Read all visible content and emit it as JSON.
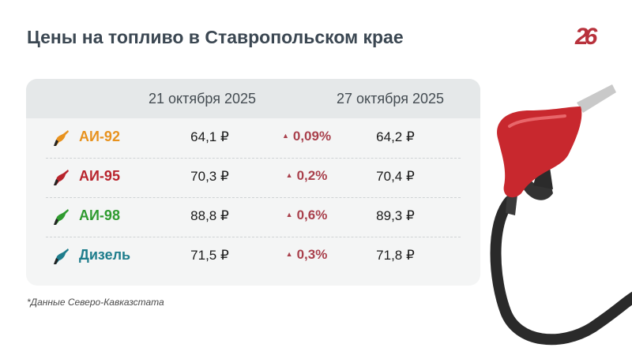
{
  "title": "Цены на топливо в Ставропольском крае",
  "logo": "26",
  "table": {
    "headers": [
      "21 октября 2025",
      "27 октября 2025"
    ],
    "rows": [
      {
        "fuel": "АИ-92",
        "color": "#e8921e",
        "price_old": "64,1 ₽",
        "change": "0,09%",
        "price_new": "64,2 ₽"
      },
      {
        "fuel": "АИ-95",
        "color": "#b8242c",
        "price_old": "70,3 ₽",
        "change": "0,2%",
        "price_new": "70,4 ₽"
      },
      {
        "fuel": "АИ-98",
        "color": "#2f9b2f",
        "price_old": "88,8 ₽",
        "change": "0,6%",
        "price_new": "89,3 ₽"
      },
      {
        "fuel": "Дизель",
        "color": "#1e7d8c",
        "price_old": "71,5 ₽",
        "change": "0,3%",
        "price_new": "71,8 ₽"
      }
    ],
    "change_icon": "triangle-up-icon",
    "change_color": "#a9404c"
  },
  "footnote": "*Данные Северо-Кавказстата"
}
